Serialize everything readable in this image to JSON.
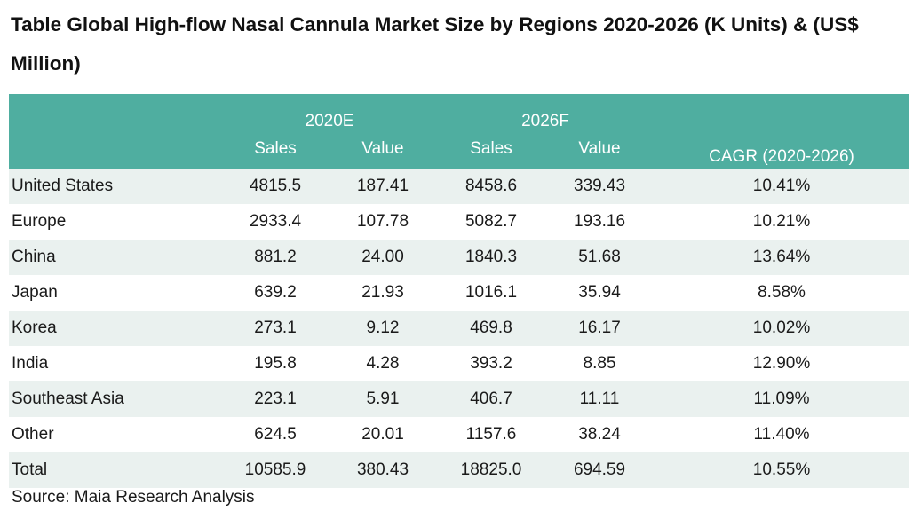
{
  "title": "Table Global High-flow Nasal Cannula Market Size by Regions 2020-2026 (K Units) & (US$ Million)",
  "table": {
    "header": {
      "year_a": "2020E",
      "year_b": "2026F",
      "sales": "Sales",
      "value": "Value",
      "cagr": "CAGR (2020-2026)"
    },
    "rows": [
      {
        "region": "United States",
        "sales_2020": "4815.5",
        "value_2020": "187.41",
        "sales_2026": "8458.6",
        "value_2026": "339.43",
        "cagr": "10.41%"
      },
      {
        "region": "Europe",
        "sales_2020": "2933.4",
        "value_2020": "107.78",
        "sales_2026": "5082.7",
        "value_2026": "193.16",
        "cagr": "10.21%"
      },
      {
        "region": "China",
        "sales_2020": "881.2",
        "value_2020": "24.00",
        "sales_2026": "1840.3",
        "value_2026": "51.68",
        "cagr": "13.64%"
      },
      {
        "region": "Japan",
        "sales_2020": "639.2",
        "value_2020": "21.93",
        "sales_2026": "1016.1",
        "value_2026": "35.94",
        "cagr": "8.58%"
      },
      {
        "region": "Korea",
        "sales_2020": "273.1",
        "value_2020": "9.12",
        "sales_2026": "469.8",
        "value_2026": "16.17",
        "cagr": "10.02%"
      },
      {
        "region": "India",
        "sales_2020": "195.8",
        "value_2020": "4.28",
        "sales_2026": "393.2",
        "value_2026": "8.85",
        "cagr": "12.90%"
      },
      {
        "region": "Southeast Asia",
        "sales_2020": "223.1",
        "value_2020": "5.91",
        "sales_2026": "406.7",
        "value_2026": "11.11",
        "cagr": "11.09%"
      },
      {
        "region": "Other",
        "sales_2020": "624.5",
        "value_2020": "20.01",
        "sales_2026": "1157.6",
        "value_2026": "38.24",
        "cagr": "11.40%"
      },
      {
        "region": "Total",
        "sales_2020": "10585.9",
        "value_2020": "380.43",
        "sales_2026": "18825.0",
        "value_2026": "694.59",
        "cagr": "10.55%"
      }
    ]
  },
  "source": "Source: Maia Research Analysis",
  "colors": {
    "header_bg": "#4faea0",
    "header_text": "#ffffff",
    "stripe": "#eaf1ef"
  }
}
